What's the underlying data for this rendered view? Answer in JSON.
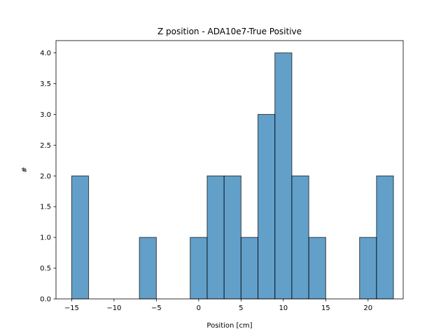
{
  "chart_data": {
    "type": "bar",
    "title": "Z position - ADA10e7-True Positive",
    "xlabel": "Position [cm]",
    "ylabel": "#",
    "xlim": [
      -16.85,
      24.15
    ],
    "ylim": [
      0,
      4.2
    ],
    "bar_color": "#1f77b4",
    "bar_edge_color": "#000000",
    "bar_opacity": 0.7,
    "grid": false,
    "x_ticks": [
      -15,
      -10,
      -5,
      0,
      5,
      10,
      15,
      20
    ],
    "x_tick_labels": [
      "−15",
      "−10",
      "−5",
      "0",
      "5",
      "10",
      "15",
      "20"
    ],
    "y_ticks": [
      0,
      0.5,
      1,
      1.5,
      2,
      2.5,
      3,
      3.5,
      4
    ],
    "y_tick_labels": [
      "0.0",
      "0.5",
      "1.0",
      "1.5",
      "2.0",
      "2.5",
      "3.0",
      "3.5",
      "4.0"
    ],
    "bins": [
      {
        "x0": -15.0,
        "x1": -13.0,
        "count": 2
      },
      {
        "x0": -13.0,
        "x1": -11.0,
        "count": 0
      },
      {
        "x0": -11.0,
        "x1": -9.0,
        "count": 0
      },
      {
        "x0": -9.0,
        "x1": -7.0,
        "count": 0
      },
      {
        "x0": -7.0,
        "x1": -5.0,
        "count": 1
      },
      {
        "x0": -5.0,
        "x1": -3.0,
        "count": 0
      },
      {
        "x0": -3.0,
        "x1": -1.0,
        "count": 0
      },
      {
        "x0": -1.0,
        "x1": 1.0,
        "count": 1
      },
      {
        "x0": 1.0,
        "x1": 3.0,
        "count": 2
      },
      {
        "x0": 3.0,
        "x1": 5.0,
        "count": 2
      },
      {
        "x0": 5.0,
        "x1": 7.0,
        "count": 1
      },
      {
        "x0": 7.0,
        "x1": 9.0,
        "count": 3
      },
      {
        "x0": 9.0,
        "x1": 11.0,
        "count": 4
      },
      {
        "x0": 11.0,
        "x1": 13.0,
        "count": 2
      },
      {
        "x0": 13.0,
        "x1": 15.0,
        "count": 1
      },
      {
        "x0": 15.0,
        "x1": 17.0,
        "count": 0
      },
      {
        "x0": 17.0,
        "x1": 19.0,
        "count": 0
      },
      {
        "x0": 19.0,
        "x1": 21.0,
        "count": 1
      },
      {
        "x0": 21.0,
        "x1": 23.0,
        "count": 2
      }
    ]
  }
}
